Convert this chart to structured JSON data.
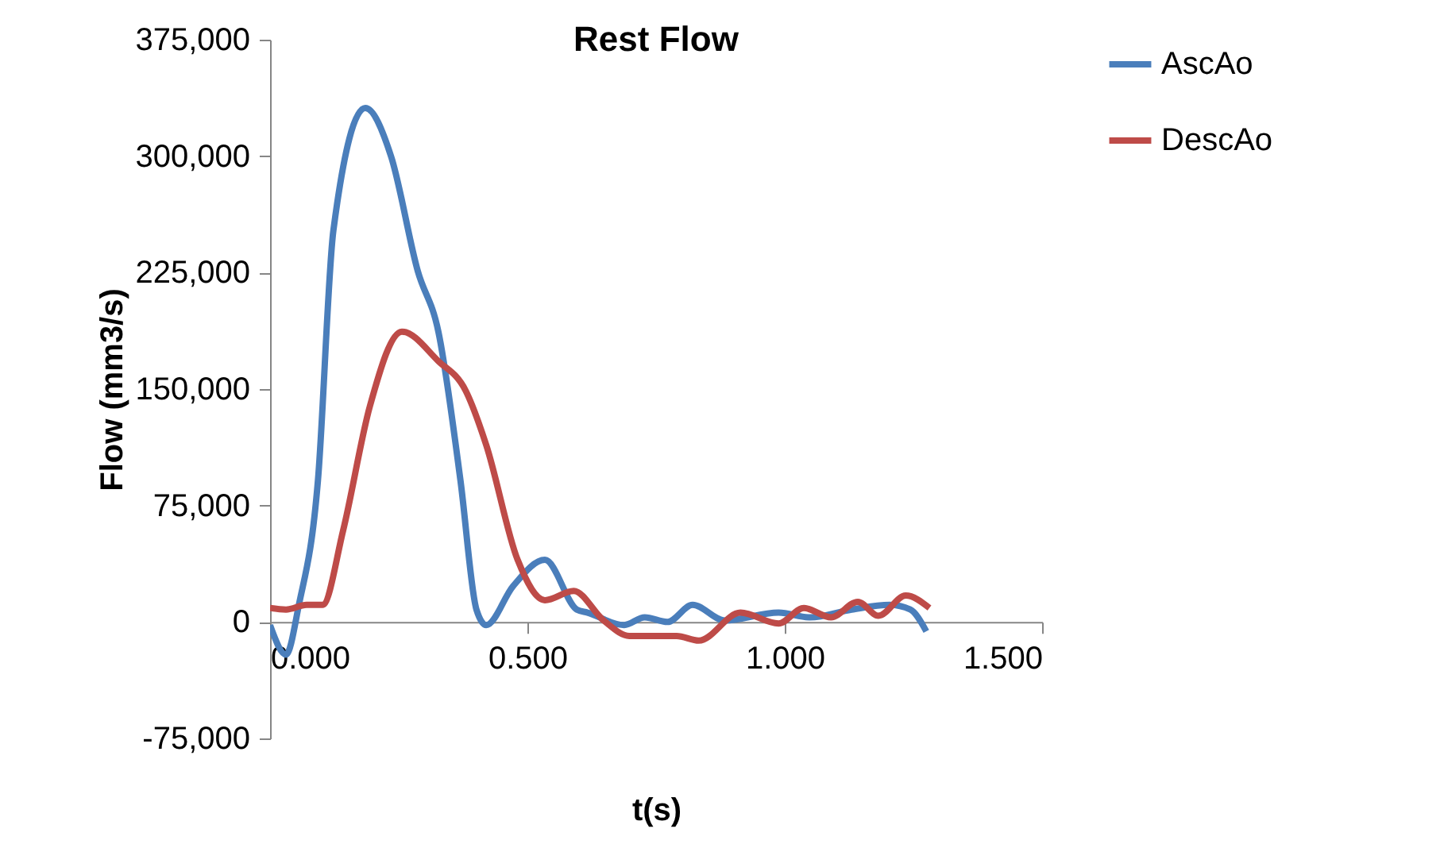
{
  "chart_data": {
    "type": "line",
    "title": "Rest Flow",
    "xlabel": "t(s)",
    "ylabel": "Flow (mm3/s)",
    "xlim": [
      0,
      1.5
    ],
    "ylim": [
      -75000,
      375000
    ],
    "xticks": [
      {
        "value": 0,
        "label": "0.000"
      },
      {
        "value": 0.5,
        "label": "0.500"
      },
      {
        "value": 1,
        "label": "1.000"
      },
      {
        "value": 1.5,
        "label": "1.500"
      }
    ],
    "yticks": [
      {
        "value": -75000,
        "label": "-75,000"
      },
      {
        "value": 0,
        "label": "0"
      },
      {
        "value": 75000,
        "label": "75,000"
      },
      {
        "value": 150000,
        "label": "150,000"
      },
      {
        "value": 225000,
        "label": "225,000"
      },
      {
        "value": 300000,
        "label": "300,000"
      },
      {
        "value": 375000,
        "label": "375,000"
      }
    ],
    "grid": false,
    "legend": "right",
    "marker": "none",
    "line_style": "solid",
    "series": [
      {
        "name": "AscAo",
        "color": "#4a7ebb",
        "x": [
          0,
          0.031,
          0.056,
          0.093,
          0.123,
          0.185,
          0.235,
          0.287,
          0.327,
          0.37,
          0.401,
          0.42,
          0.472,
          0.534,
          0.596,
          0.617,
          0.688,
          0.728,
          0.772,
          0.821,
          0.883,
          0.988,
          1.049,
          1.13,
          1.204,
          1.244,
          1.275
        ],
        "values": [
          -2000,
          -21000,
          11000,
          91000,
          252000,
          331000,
          300000,
          226000,
          187000,
          91000,
          8000,
          -2000,
          23000,
          40000,
          8000,
          6000,
          -2000,
          3000,
          0,
          11000,
          1000,
          6000,
          3000,
          8000,
          11000,
          8000,
          -6000
        ]
      },
      {
        "name": "DescAo",
        "color": "#be4b48",
        "x": [
          0,
          0.031,
          0.071,
          0.102,
          0.142,
          0.194,
          0.256,
          0.327,
          0.38,
          0.42,
          0.481,
          0.534,
          0.59,
          0.648,
          0.698,
          0.79,
          0.833,
          0.914,
          0.988,
          1.037,
          1.09,
          1.142,
          1.182,
          1.235,
          1.281
        ],
        "values": [
          9000,
          8000,
          11000,
          11000,
          59000,
          139000,
          187000,
          168000,
          149000,
          114000,
          40000,
          14000,
          20000,
          1000,
          -9000,
          -9000,
          -12000,
          6000,
          -1000,
          9000,
          3000,
          13000,
          4000,
          17000,
          9000
        ]
      }
    ]
  }
}
